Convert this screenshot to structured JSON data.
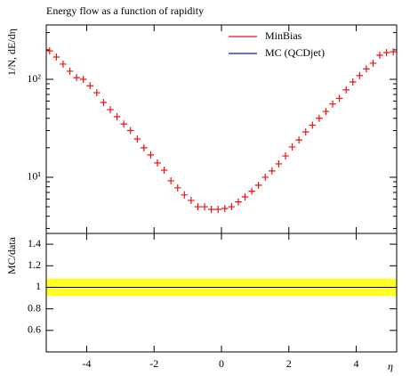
{
  "chart_data": {
    "type": "scatter",
    "title": "Energy flow as a function of rapidity",
    "xlabel": "η",
    "ylabel": "1/N, dE/dη",
    "log_y": true,
    "xlim": [
      -5.2,
      5.2
    ],
    "xticks": [
      -4,
      -2,
      0,
      2,
      4
    ],
    "ylim": [
      2.67,
      359
    ],
    "yticks": [
      {
        "value": 10,
        "label": "10¹"
      },
      {
        "value": 100,
        "label": "10²"
      }
    ],
    "yminorticks": [
      3,
      4,
      5,
      6,
      7,
      8,
      9,
      20,
      30,
      40,
      50,
      60,
      70,
      80,
      90,
      200,
      300
    ],
    "legend": "top-right",
    "x": [
      -5.1,
      -4.9,
      -4.7,
      -4.5,
      -4.3,
      -4.1,
      -3.9,
      -3.7,
      -3.5,
      -3.3,
      -3.1,
      -2.9,
      -2.7,
      -2.5,
      -2.3,
      -2.1,
      -1.9,
      -1.7,
      -1.5,
      -1.3,
      -1.1,
      -0.9,
      -0.7,
      -0.5,
      -0.3,
      -0.1,
      0.1,
      0.3,
      0.5,
      0.7,
      0.9,
      1.1,
      1.3,
      1.5,
      1.7,
      1.9,
      2.1,
      2.3,
      2.5,
      2.7,
      2.9,
      3.1,
      3.3,
      3.5,
      3.7,
      3.9,
      4.1,
      4.3,
      4.5,
      4.7,
      4.9,
      5.1
    ],
    "series": [
      {
        "name": "MinBias",
        "color": "#ee1111",
        "values": [
          195,
          169,
          143,
          121,
          104,
          100,
          86,
          73,
          58,
          49,
          41.5,
          35,
          30,
          24.6,
          20,
          16.9,
          14,
          11.8,
          9.2,
          7.8,
          6.6,
          5.8,
          5.0,
          5.0,
          4.7,
          4.7,
          4.8,
          5.0,
          5.6,
          6.3,
          7.2,
          8.3,
          10,
          11.6,
          13.7,
          16.5,
          20.4,
          24,
          29,
          34,
          40,
          47,
          56,
          64,
          78,
          94,
          109,
          128,
          146,
          176,
          187,
          191
        ]
      },
      {
        "name": "MC (QCDjet)",
        "color": "#1111ee"
      }
    ],
    "ratio": {
      "ylabel": "MC/data",
      "ylim": [
        0.4,
        1.5
      ],
      "yticks": [
        0.6,
        0.8,
        1,
        1.2,
        1.4
      ],
      "band_color": "#ffff22",
      "band_halfwidth": 0.08,
      "line_value": 1,
      "line_color": "#000000"
    }
  }
}
